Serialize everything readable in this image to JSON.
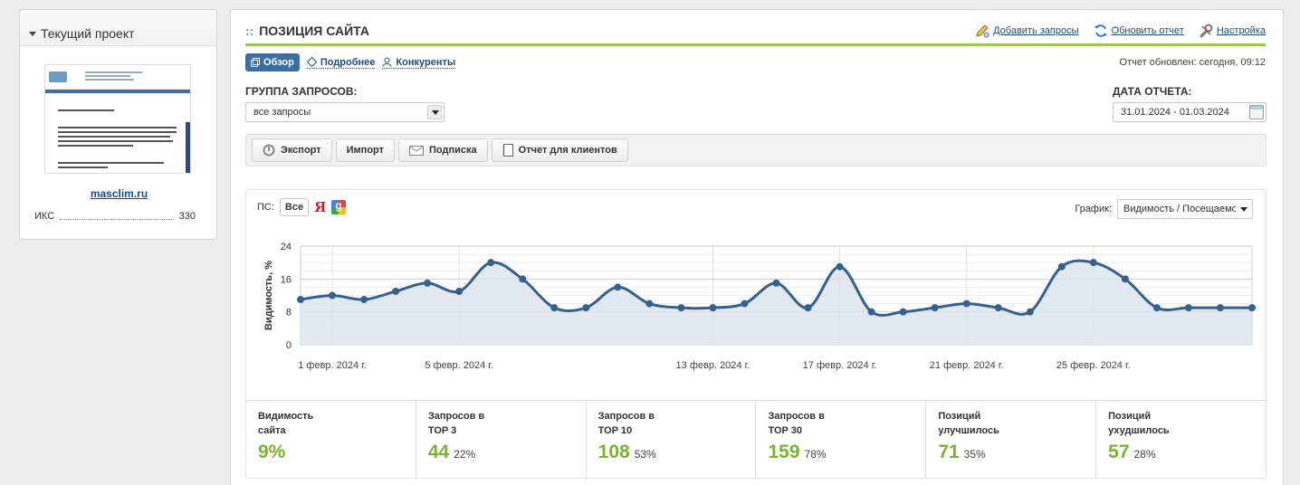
{
  "project": {
    "header": "Текущий проект",
    "site_name": "masclim.ru",
    "iks_label": "ИКС",
    "iks_value": "330"
  },
  "main": {
    "title_prefix": "::",
    "title": "ПОЗИЦИЯ САЙТА",
    "actions": {
      "add_queries": "Добавить запросы",
      "refresh_report": "Обновить отчет",
      "settings": "Настройка"
    },
    "tabs": {
      "overview": "Обзор",
      "details": "Подробнее",
      "competitors": "Конкуренты"
    },
    "report_updated": "Отчет обновлен: сегодня, 09:12",
    "group_label": "ГРУППА ЗАПРОСОВ:",
    "group_value": "все запросы",
    "date_label": "ДАТА ОТЧЕТА:",
    "date_value": "31.01.2024 - 01.03.2024",
    "toolbar": {
      "export": "Экспорт",
      "import": "Импорт",
      "subscribe": "Подписка",
      "client_report": "Отчет для клиентов"
    }
  },
  "chart_panel": {
    "ps_label": "ПС:",
    "ps_all": "Все",
    "graph_label": "График:",
    "graph_value": "Видимость / Посещаемость"
  },
  "chart_data": {
    "type": "area",
    "ylabel": "Видимость, %",
    "ylim": [
      0,
      24
    ],
    "yticks": [
      0,
      8,
      16,
      24
    ],
    "x": [
      "2024-01-31",
      "2024-02-01",
      "2024-02-02",
      "2024-02-03",
      "2024-02-04",
      "2024-02-05",
      "2024-02-06",
      "2024-02-07",
      "2024-02-08",
      "2024-02-09",
      "2024-02-10",
      "2024-02-11",
      "2024-02-12",
      "2024-02-13",
      "2024-02-14",
      "2024-02-15",
      "2024-02-16",
      "2024-02-17",
      "2024-02-18",
      "2024-02-19",
      "2024-02-20",
      "2024-02-21",
      "2024-02-22",
      "2024-02-23",
      "2024-02-24",
      "2024-02-25",
      "2024-02-26",
      "2024-02-27",
      "2024-02-28",
      "2024-02-29",
      "2024-03-01"
    ],
    "values": [
      11,
      12,
      11,
      13,
      15,
      13,
      20,
      16,
      9,
      9,
      14,
      10,
      9,
      9,
      10,
      15,
      9,
      19,
      8,
      8,
      9,
      10,
      9,
      8,
      19,
      20,
      16,
      9,
      9,
      9,
      9
    ],
    "xtick_labels": [
      "1 февр. 2024 г.",
      "5 февр. 2024 г.",
      "13 февр. 2024 г.",
      "17 февр. 2024 г.",
      "21 февр. 2024 г.",
      "25 февр. 2024 г."
    ],
    "xtick_index": [
      1,
      5,
      13,
      17,
      21,
      25
    ],
    "colors": {
      "line": "#34618f",
      "fill": "#dde5ee",
      "grid": "#d8d8d8"
    }
  },
  "stats": [
    {
      "label": "Видимость\nсайта",
      "value": "9%",
      "pct": ""
    },
    {
      "label": "Запросов в\nTOP 3",
      "value": "44",
      "pct": "22%"
    },
    {
      "label": "Запросов в\nTOP 10",
      "value": "108",
      "pct": "53%"
    },
    {
      "label": "Запросов в\nTOP 30",
      "value": "159",
      "pct": "78%"
    },
    {
      "label": "Позиций\nулучшилось",
      "value": "71",
      "pct": "35%"
    },
    {
      "label": "Позиций\nухудшилось",
      "value": "57",
      "pct": "28%"
    }
  ]
}
